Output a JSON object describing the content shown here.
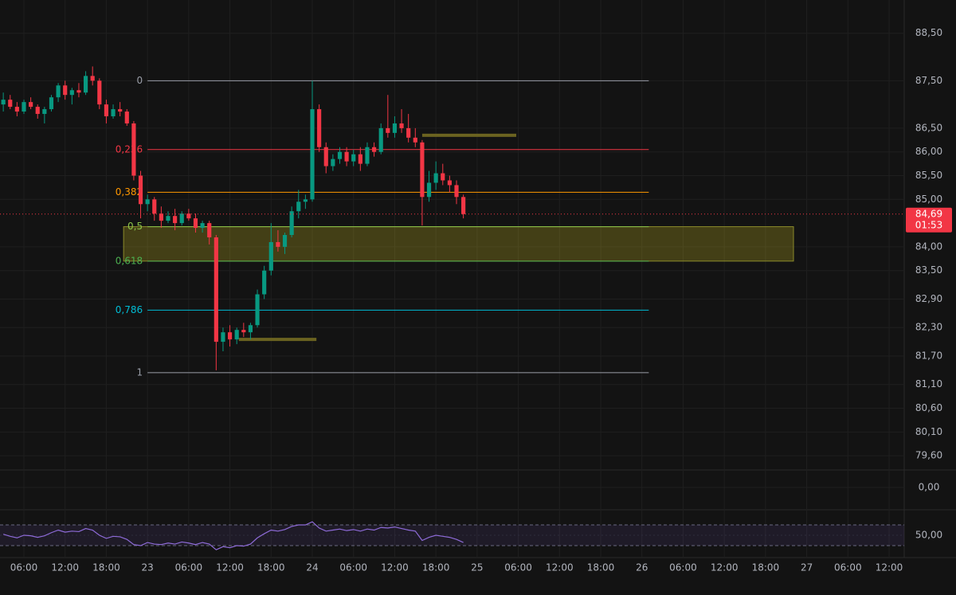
{
  "chart_data": {
    "type": "candlestick",
    "xlim": [
      2.52,
      134.2
    ],
    "ylim": [
      79.3,
      89.2
    ],
    "grid": true,
    "up_color": "#089981",
    "down_color": "#f23645",
    "xticks": [
      {
        "value": 6,
        "label": "06:00"
      },
      {
        "value": 12,
        "label": "12:00"
      },
      {
        "value": 18,
        "label": "18:00"
      },
      {
        "value": 24,
        "label": "23"
      },
      {
        "value": 30,
        "label": "06:00"
      },
      {
        "value": 36,
        "label": "12:00"
      },
      {
        "value": 42,
        "label": "18:00"
      },
      {
        "value": 48,
        "label": "24"
      },
      {
        "value": 54,
        "label": "06:00"
      },
      {
        "value": 60,
        "label": "12:00"
      },
      {
        "value": 66,
        "label": "18:00"
      },
      {
        "value": 72,
        "label": "25"
      },
      {
        "value": 78,
        "label": "06:00"
      },
      {
        "value": 84,
        "label": "12:00"
      },
      {
        "value": 90,
        "label": "18:00"
      },
      {
        "value": 96,
        "label": "26"
      },
      {
        "value": 102,
        "label": "06:00"
      },
      {
        "value": 108,
        "label": "12:00"
      },
      {
        "value": 114,
        "label": "18:00"
      },
      {
        "value": 120,
        "label": "27"
      },
      {
        "value": 126,
        "label": "06:00"
      },
      {
        "value": 132,
        "label": "12:00"
      }
    ],
    "yticks": [
      {
        "value": 88.5,
        "label": "88,50"
      },
      {
        "value": 87.5,
        "label": "87,50"
      },
      {
        "value": 86.5,
        "label": "86,50"
      },
      {
        "value": 86,
        "label": "86,00"
      },
      {
        "value": 85.5,
        "label": "85,50"
      },
      {
        "value": 85,
        "label": "85,00"
      },
      {
        "value": 84,
        "label": "84,00"
      },
      {
        "value": 83.5,
        "label": "83,50"
      },
      {
        "value": 82.9,
        "label": "82,90"
      },
      {
        "value": 82.3,
        "label": "82,30"
      },
      {
        "value": 81.7,
        "label": "81,70"
      },
      {
        "value": 81.1,
        "label": "81,10"
      },
      {
        "value": 80.6,
        "label": "80,60"
      },
      {
        "value": 80.1,
        "label": "80,10"
      },
      {
        "value": 79.6,
        "label": "79,60"
      }
    ],
    "x": [
      3,
      4,
      5,
      6,
      7,
      8,
      9,
      10,
      11,
      12,
      13,
      14,
      15,
      16,
      17,
      18,
      19,
      20,
      21,
      22,
      23,
      24,
      25,
      26,
      27,
      28,
      29,
      30,
      31,
      32,
      33,
      34,
      35,
      36,
      37,
      38,
      39,
      40,
      41,
      42,
      43,
      44,
      45,
      46,
      47,
      48,
      49,
      50,
      51,
      52,
      53,
      54,
      55,
      56,
      57,
      58,
      59,
      60,
      61,
      62,
      63,
      64,
      65,
      66,
      67,
      68,
      69,
      70
    ],
    "open": [
      87.0,
      87.1,
      86.95,
      86.85,
      87.05,
      86.95,
      86.8,
      86.9,
      87.15,
      87.4,
      87.2,
      87.3,
      87.25,
      87.6,
      87.5,
      87.0,
      86.75,
      86.9,
      86.85,
      86.6,
      85.5,
      84.9,
      85.0,
      84.7,
      84.55,
      84.65,
      84.5,
      84.7,
      84.6,
      84.4,
      84.5,
      84.2,
      82.0,
      82.2,
      82.05,
      82.25,
      82.2,
      82.35,
      83.0,
      83.5,
      84.1,
      84.0,
      84.25,
      84.75,
      84.95,
      85.0,
      86.9,
      86.1,
      85.7,
      85.85,
      86.0,
      85.8,
      85.95,
      85.75,
      86.1,
      86.0,
      86.5,
      86.4,
      86.6,
      86.5,
      86.3,
      86.2,
      85.05,
      85.35,
      85.55,
      85.4,
      85.3,
      85.05
    ],
    "high": [
      87.25,
      87.2,
      87.05,
      87.1,
      87.15,
      87.0,
      86.95,
      87.2,
      87.45,
      87.5,
      87.35,
      87.45,
      87.7,
      87.8,
      87.55,
      87.1,
      87.0,
      87.05,
      86.9,
      86.65,
      85.6,
      85.1,
      85.05,
      84.85,
      84.75,
      84.8,
      84.75,
      84.8,
      84.7,
      84.55,
      84.55,
      84.25,
      82.3,
      82.35,
      82.3,
      82.4,
      82.4,
      83.1,
      83.6,
      84.5,
      84.35,
      84.3,
      84.85,
      85.2,
      85.1,
      87.5,
      87.0,
      86.2,
      85.95,
      86.1,
      86.1,
      86.05,
      86.1,
      86.2,
      86.2,
      86.6,
      87.2,
      86.75,
      86.9,
      86.8,
      86.5,
      86.25,
      85.6,
      85.8,
      85.75,
      85.5,
      85.4,
      85.1
    ],
    "low": [
      86.85,
      86.9,
      86.75,
      86.8,
      86.9,
      86.7,
      86.6,
      86.85,
      87.05,
      87.1,
      87.0,
      87.15,
      87.2,
      87.4,
      86.9,
      86.6,
      86.7,
      86.75,
      86.55,
      85.4,
      84.6,
      84.75,
      84.55,
      84.4,
      84.5,
      84.35,
      84.45,
      84.55,
      84.3,
      84.3,
      84.05,
      81.4,
      81.8,
      81.9,
      81.95,
      82.1,
      82.05,
      82.3,
      82.9,
      83.4,
      83.9,
      83.85,
      84.2,
      84.6,
      84.8,
      84.95,
      86.0,
      85.55,
      85.6,
      85.75,
      85.7,
      85.7,
      85.6,
      85.7,
      85.9,
      85.95,
      86.3,
      86.3,
      86.4,
      86.2,
      86.1,
      84.45,
      84.95,
      85.2,
      85.3,
      85.15,
      84.9,
      84.6
    ],
    "close": [
      87.1,
      86.95,
      86.85,
      87.05,
      86.95,
      86.8,
      86.9,
      87.15,
      87.4,
      87.2,
      87.3,
      87.25,
      87.6,
      87.5,
      87.0,
      86.75,
      86.9,
      86.85,
      86.6,
      85.5,
      84.9,
      85.0,
      84.7,
      84.55,
      84.65,
      84.5,
      84.7,
      84.6,
      84.4,
      84.5,
      84.2,
      82.0,
      82.2,
      82.05,
      82.25,
      82.2,
      82.35,
      83.0,
      83.5,
      84.1,
      84.0,
      84.25,
      84.75,
      84.95,
      85.0,
      86.9,
      86.1,
      85.7,
      85.85,
      86.0,
      85.8,
      85.95,
      85.75,
      86.1,
      86.0,
      86.5,
      86.4,
      86.6,
      86.5,
      86.3,
      86.2,
      85.05,
      85.35,
      85.55,
      85.4,
      85.3,
      85.05,
      84.69
    ],
    "last_price": {
      "value": 84.69,
      "label": "84,69",
      "countdown": "01:53",
      "color": "#f23645"
    },
    "fib": {
      "high": 87.5,
      "low": 81.35,
      "x": [
        24,
        97
      ],
      "levels": [
        {
          "value": 0,
          "label": "0",
          "color": "#9a9ea8"
        },
        {
          "value": 0.236,
          "label": "0,236",
          "color": "#f23645"
        },
        {
          "value": 0.382,
          "label": "0,382",
          "color": "#ff9800"
        },
        {
          "value": 0.5,
          "label": "0,5",
          "color": "#8bc34a"
        },
        {
          "value": 0.618,
          "label": "0,618",
          "color": "#4caf50"
        },
        {
          "value": 0.786,
          "label": "0,786",
          "color": "#00bcd4"
        },
        {
          "value": 1,
          "label": "1",
          "color": "#9a9ea8"
        }
      ],
      "zone_color": "rgba(170,160,30,0.32)"
    },
    "rays": [
      {
        "x": [
          64,
          77.7
        ],
        "y": 86.35,
        "color": "#6b6320"
      },
      {
        "x": [
          37.3,
          48.6
        ],
        "y": 82.05,
        "color": "#6b6320"
      }
    ],
    "indicator_pane": {
      "yticks": [
        {
          "value": 0,
          "label": "0,00"
        }
      ]
    },
    "rsi": {
      "color": "#8e6bd8",
      "ylim": [
        0,
        100
      ],
      "bands": [
        30,
        70
      ],
      "yticks": [
        {
          "value": 50,
          "label": "50,00"
        }
      ],
      "values": [
        52,
        48,
        45,
        50,
        49,
        46,
        49,
        55,
        60,
        56,
        58,
        57,
        63,
        60,
        50,
        44,
        48,
        47,
        42,
        32,
        30,
        36,
        33,
        32,
        35,
        33,
        37,
        35,
        32,
        36,
        33,
        22,
        28,
        26,
        30,
        29,
        33,
        45,
        53,
        60,
        58,
        61,
        67,
        70,
        70,
        76,
        64,
        58,
        60,
        62,
        59,
        61,
        58,
        62,
        60,
        65,
        64,
        66,
        63,
        60,
        58,
        40,
        46,
        50,
        48,
        46,
        42,
        36
      ]
    }
  }
}
